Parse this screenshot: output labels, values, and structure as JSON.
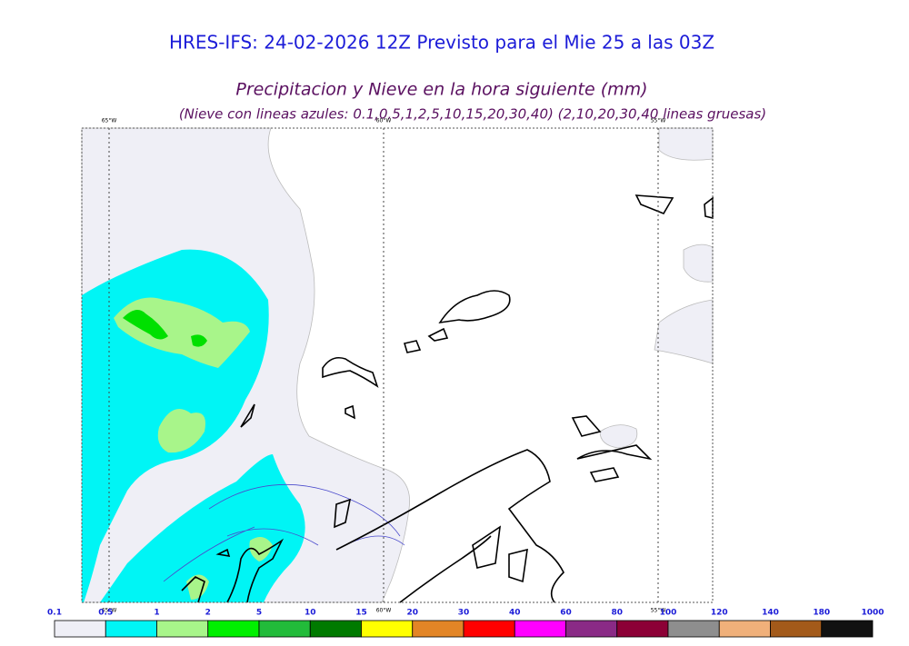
{
  "header": {
    "title": "HRES-IFS: 24-02-2026 12Z Previsto para el Mie 25 a las 03Z",
    "subtitle": "Precipitacion y Nieve en la hora siguiente (mm)",
    "note": "(Nieve con lineas azules: 0.1,0.5,1,2,5,10,15,20,30,40)  (2,10,20,30,40 lineas gruesas)"
  },
  "map": {
    "lon_labels": [
      "65°W",
      "60°W",
      "55°W"
    ]
  },
  "colorbar": {
    "labels": [
      "0.1",
      "0.5",
      "1",
      "2",
      "5",
      "10",
      "15",
      "20",
      "30",
      "40",
      "60",
      "80",
      "100",
      "120",
      "140",
      "180",
      "1000"
    ],
    "colors": [
      "#efeff6",
      "#00f5f5",
      "#a8f58a",
      "#00f000",
      "#22bb3a",
      "#007a00",
      "#ffff00",
      "#e38526",
      "#ff0000",
      "#ff00ff",
      "#8a2a86",
      "#8c0036",
      "#8e8e8e",
      "#f0b07a",
      "#a35a1a",
      "#111111"
    ]
  }
}
